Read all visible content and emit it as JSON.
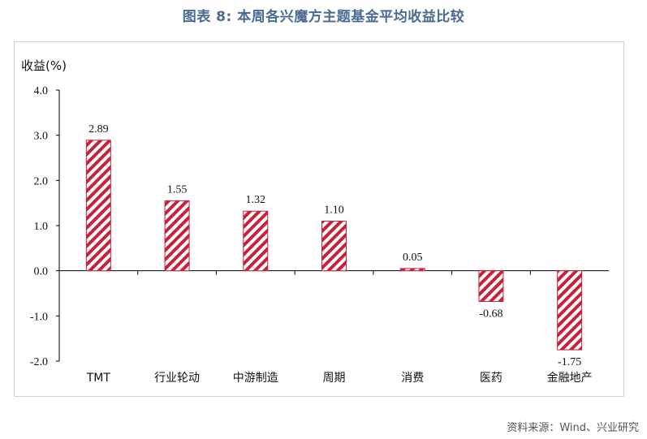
{
  "title": "图表 8:  本周各兴魔方主题基金平均收益比较",
  "source": "资料来源：Wind、兴业研究",
  "colors": {
    "bar_stripe": "#c8213a",
    "title": "#4a6a93"
  },
  "chart_data": {
    "type": "bar",
    "ylabel": "收益(%)",
    "ylim": [
      -2.0,
      4.0
    ],
    "yticks": [
      -2.0,
      -1.0,
      0.0,
      1.0,
      2.0,
      3.0,
      4.0
    ],
    "ytick_labels": [
      "-2.0",
      "-1.0",
      "0.0",
      "1.0",
      "2.0",
      "3.0",
      "4.0"
    ],
    "categories": [
      "TMT",
      "行业轮动",
      "中游制造",
      "周期",
      "消费",
      "医药",
      "金融地产"
    ],
    "values": [
      2.89,
      1.55,
      1.32,
      1.1,
      0.05,
      -0.68,
      -1.75
    ],
    "data_labels": [
      "2.89",
      "1.55",
      "1.32",
      "1.10",
      "0.05",
      "-0.68",
      "-1.75"
    ],
    "grid": false,
    "legend": "none",
    "bar_fill": "diagonal-stripes"
  }
}
